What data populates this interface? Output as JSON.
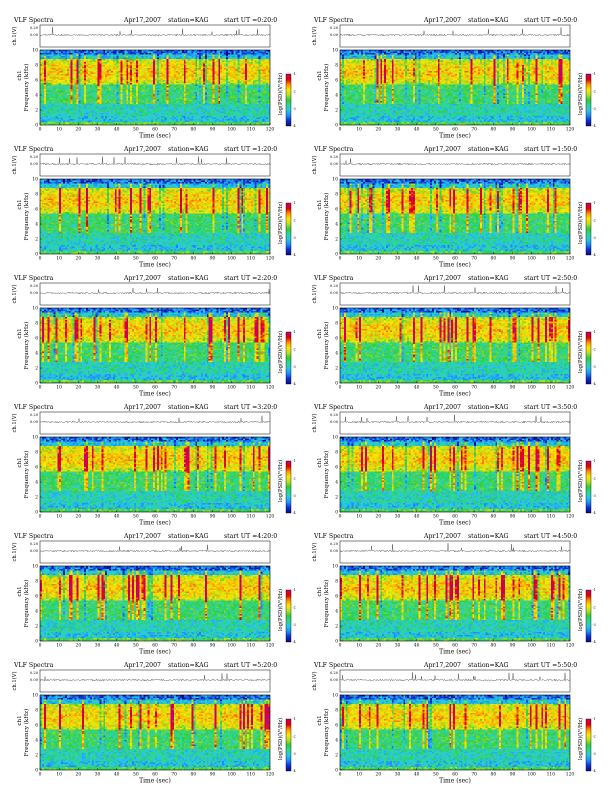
{
  "page": {
    "title": ""
  },
  "colorscale": {
    "stops": [
      "#0a0a8c",
      "#1030d8",
      "#1e90ff",
      "#28c8e6",
      "#30d890",
      "#2ecc40",
      "#b8e020",
      "#ffe800",
      "#ff9a00",
      "#e80000",
      "#c8006e"
    ],
    "tick_labels": [
      "-4",
      "-3",
      "-2",
      "-1"
    ]
  },
  "chart_data": [
    {
      "type": "heatmap",
      "header": {
        "title": "VLF Spectra",
        "date": "Apr17,2007",
        "station": "station=KAG",
        "start": "start UT =0:20:0"
      },
      "trace_label": "ch.1(V)",
      "trace_ticks": [
        "0.00",
        "0.20"
      ],
      "ylabel": "Frequency (kHz)",
      "ylabel_prefix": "ch1",
      "xlabel": "Time (sec)",
      "xlim": [
        0,
        120
      ],
      "ylim": [
        0,
        10
      ],
      "xticks": [
        0,
        10,
        20,
        30,
        40,
        50,
        60,
        70,
        80,
        90,
        100,
        110,
        120
      ],
      "yticks": [
        0,
        2,
        4,
        6,
        8,
        10
      ],
      "colorbar_label": "log(PSD)(V²/Hz)"
    },
    {
      "type": "heatmap",
      "header": {
        "title": "VLF Spectra",
        "date": "Apr17,2007",
        "station": "station=KAG",
        "start": "start UT =0:50:0"
      },
      "trace_label": "ch.1(V)",
      "trace_ticks": [
        "0.00",
        "0.20"
      ],
      "ylabel": "Frequency (kHz)",
      "ylabel_prefix": "ch1",
      "xlabel": "Time (sec)",
      "xlim": [
        0,
        120
      ],
      "ylim": [
        0,
        10
      ],
      "xticks": [
        0,
        10,
        20,
        30,
        40,
        50,
        60,
        70,
        80,
        90,
        100,
        110,
        120
      ],
      "yticks": [
        0,
        2,
        4,
        6,
        8,
        10
      ],
      "colorbar_label": "log(PSD)(V²/Hz)"
    },
    {
      "type": "heatmap",
      "header": {
        "title": "VLF Spectra",
        "date": "Apr17,2007",
        "station": "station=KAG",
        "start": "start UT =1:20:0"
      },
      "trace_label": "ch.1(V)",
      "trace_ticks": [
        "0.00",
        "0.20"
      ],
      "ylabel": "Frequency (kHz)",
      "ylabel_prefix": "ch1",
      "xlabel": "Time (sec)",
      "xlim": [
        0,
        120
      ],
      "ylim": [
        0,
        10
      ],
      "xticks": [
        0,
        10,
        20,
        30,
        40,
        50,
        60,
        70,
        80,
        90,
        100,
        110,
        120
      ],
      "yticks": [
        0,
        2,
        4,
        6,
        8,
        10
      ],
      "colorbar_label": "log(PSD)(V²/Hz)"
    },
    {
      "type": "heatmap",
      "header": {
        "title": "VLF Spectra",
        "date": "Apr17,2007",
        "station": "station=KAG",
        "start": "start UT =1:50:0"
      },
      "trace_label": "ch.1(V)",
      "trace_ticks": [
        "0.00",
        "0.20"
      ],
      "ylabel": "Frequency (kHz)",
      "ylabel_prefix": "ch1",
      "xlabel": "Time (sec)",
      "xlim": [
        0,
        120
      ],
      "ylim": [
        0,
        10
      ],
      "xticks": [
        0,
        10,
        20,
        30,
        40,
        50,
        60,
        70,
        80,
        90,
        100,
        110,
        120
      ],
      "yticks": [
        0,
        2,
        4,
        6,
        8,
        10
      ],
      "colorbar_label": "log(PSD)(V²/Hz)"
    },
    {
      "type": "heatmap",
      "header": {
        "title": "VLF Spectra",
        "date": "Apr17,2007",
        "station": "station=KAG",
        "start": "start UT =2:20:0"
      },
      "trace_label": "ch.1(V)",
      "trace_ticks": [
        "0.00",
        "0.20"
      ],
      "ylabel": "Frequency (kHz)",
      "ylabel_prefix": "ch1",
      "xlabel": "Time (sec)",
      "xlim": [
        0,
        120
      ],
      "ylim": [
        0,
        10
      ],
      "xticks": [
        0,
        10,
        20,
        30,
        40,
        50,
        60,
        70,
        80,
        90,
        100,
        110,
        120
      ],
      "yticks": [
        0,
        2,
        4,
        6,
        8,
        10
      ],
      "colorbar_label": "log(PSD)(V²/Hz)"
    },
    {
      "type": "heatmap",
      "header": {
        "title": "VLF Spectra",
        "date": "Apr17,2007",
        "station": "station=KAG",
        "start": "start UT =2:50:0"
      },
      "trace_label": "ch.1(V)",
      "trace_ticks": [
        "0.00",
        "0.20"
      ],
      "ylabel": "Frequency (kHz)",
      "ylabel_prefix": "ch1",
      "xlabel": "Time (sec)",
      "xlim": [
        0,
        120
      ],
      "ylim": [
        0,
        10
      ],
      "xticks": [
        0,
        10,
        20,
        30,
        40,
        50,
        60,
        70,
        80,
        90,
        100,
        110,
        120
      ],
      "yticks": [
        0,
        2,
        4,
        6,
        8,
        10
      ],
      "colorbar_label": "log(PSD)(V²/Hz)"
    },
    {
      "type": "heatmap",
      "header": {
        "title": "VLF Spectra",
        "date": "Apr17,2007",
        "station": "station=KAG",
        "start": "start UT =3:20:0"
      },
      "trace_label": "ch.1(V)",
      "trace_ticks": [
        "0.00",
        "0.20"
      ],
      "ylabel": "Frequency (kHz)",
      "ylabel_prefix": "ch1",
      "xlabel": "Time (sec)",
      "xlim": [
        0,
        120
      ],
      "ylim": [
        0,
        10
      ],
      "xticks": [
        0,
        10,
        20,
        30,
        40,
        50,
        60,
        70,
        80,
        90,
        100,
        110,
        120
      ],
      "yticks": [
        0,
        2,
        4,
        6,
        8,
        10
      ],
      "colorbar_label": "log(PSD)(V²/Hz)"
    },
    {
      "type": "heatmap",
      "header": {
        "title": "VLF Spectra",
        "date": "Apr17,2007",
        "station": "station=KAG",
        "start": "start UT =3:50:0"
      },
      "trace_label": "ch.1(V)",
      "trace_ticks": [
        "0.00",
        "0.20"
      ],
      "ylabel": "Frequency (kHz)",
      "ylabel_prefix": "ch1",
      "xlabel": "Time (sec)",
      "xlim": [
        0,
        120
      ],
      "ylim": [
        0,
        10
      ],
      "xticks": [
        0,
        10,
        20,
        30,
        40,
        50,
        60,
        70,
        80,
        90,
        100,
        110,
        120
      ],
      "yticks": [
        0,
        2,
        4,
        6,
        8,
        10
      ],
      "colorbar_label": "log(PSD)(V²/Hz)"
    },
    {
      "type": "heatmap",
      "header": {
        "title": "VLF Spectra",
        "date": "Apr17,2007",
        "station": "station=KAG",
        "start": "start UT =4:20:0"
      },
      "trace_label": "ch.1(V)",
      "trace_ticks": [
        "0.00",
        "0.20"
      ],
      "ylabel": "Frequency (kHz)",
      "ylabel_prefix": "ch1",
      "xlabel": "Time (sec)",
      "xlim": [
        0,
        120
      ],
      "ylim": [
        0,
        10
      ],
      "xticks": [
        0,
        10,
        20,
        30,
        40,
        50,
        60,
        70,
        80,
        90,
        100,
        110,
        120
      ],
      "yticks": [
        0,
        2,
        4,
        6,
        8,
        10
      ],
      "colorbar_label": "log(PSD)(V²/Hz)"
    },
    {
      "type": "heatmap",
      "header": {
        "title": "VLF Spectra",
        "date": "Apr17,2007",
        "station": "station=KAG",
        "start": "start UT =4:50:0"
      },
      "trace_label": "ch.1(V)",
      "trace_ticks": [
        "0.00",
        "0.20"
      ],
      "ylabel": "Frequency (kHz)",
      "ylabel_prefix": "ch1",
      "xlabel": "Time (sec)",
      "xlim": [
        0,
        120
      ],
      "ylim": [
        0,
        10
      ],
      "xticks": [
        0,
        10,
        20,
        30,
        40,
        50,
        60,
        70,
        80,
        90,
        100,
        110,
        120
      ],
      "yticks": [
        0,
        2,
        4,
        6,
        8,
        10
      ],
      "colorbar_label": "log(PSD)(V²/Hz)"
    },
    {
      "type": "heatmap",
      "header": {
        "title": "VLF Spectra",
        "date": "Apr17,2007",
        "station": "station=KAG",
        "start": "start UT =5:20:0"
      },
      "trace_label": "ch.1(V)",
      "trace_ticks": [
        "0.00",
        "0.20"
      ],
      "ylabel": "Frequency (kHz)",
      "ylabel_prefix": "ch1",
      "xlabel": "Time (sec)",
      "xlim": [
        0,
        120
      ],
      "ylim": [
        0,
        10
      ],
      "xticks": [
        0,
        10,
        20,
        30,
        40,
        50,
        60,
        70,
        80,
        90,
        100,
        110,
        120
      ],
      "yticks": [
        0,
        2,
        4,
        6,
        8,
        10
      ],
      "colorbar_label": "log(PSD)(V²/Hz)"
    },
    {
      "type": "heatmap",
      "header": {
        "title": "VLF Spectra",
        "date": "Apr17,2007",
        "station": "station=KAG",
        "start": "start UT =5:50:0"
      },
      "trace_label": "ch.1(V)",
      "trace_ticks": [
        "0.00",
        "0.20"
      ],
      "ylabel": "Frequency (kHz)",
      "ylabel_prefix": "ch1",
      "xlabel": "Time (sec)",
      "xlim": [
        0,
        120
      ],
      "ylim": [
        0,
        10
      ],
      "xticks": [
        0,
        10,
        20,
        30,
        40,
        50,
        60,
        70,
        80,
        90,
        100,
        110,
        120
      ],
      "yticks": [
        0,
        2,
        4,
        6,
        8,
        10
      ],
      "colorbar_label": "log(PSD)(V²/Hz)"
    }
  ]
}
